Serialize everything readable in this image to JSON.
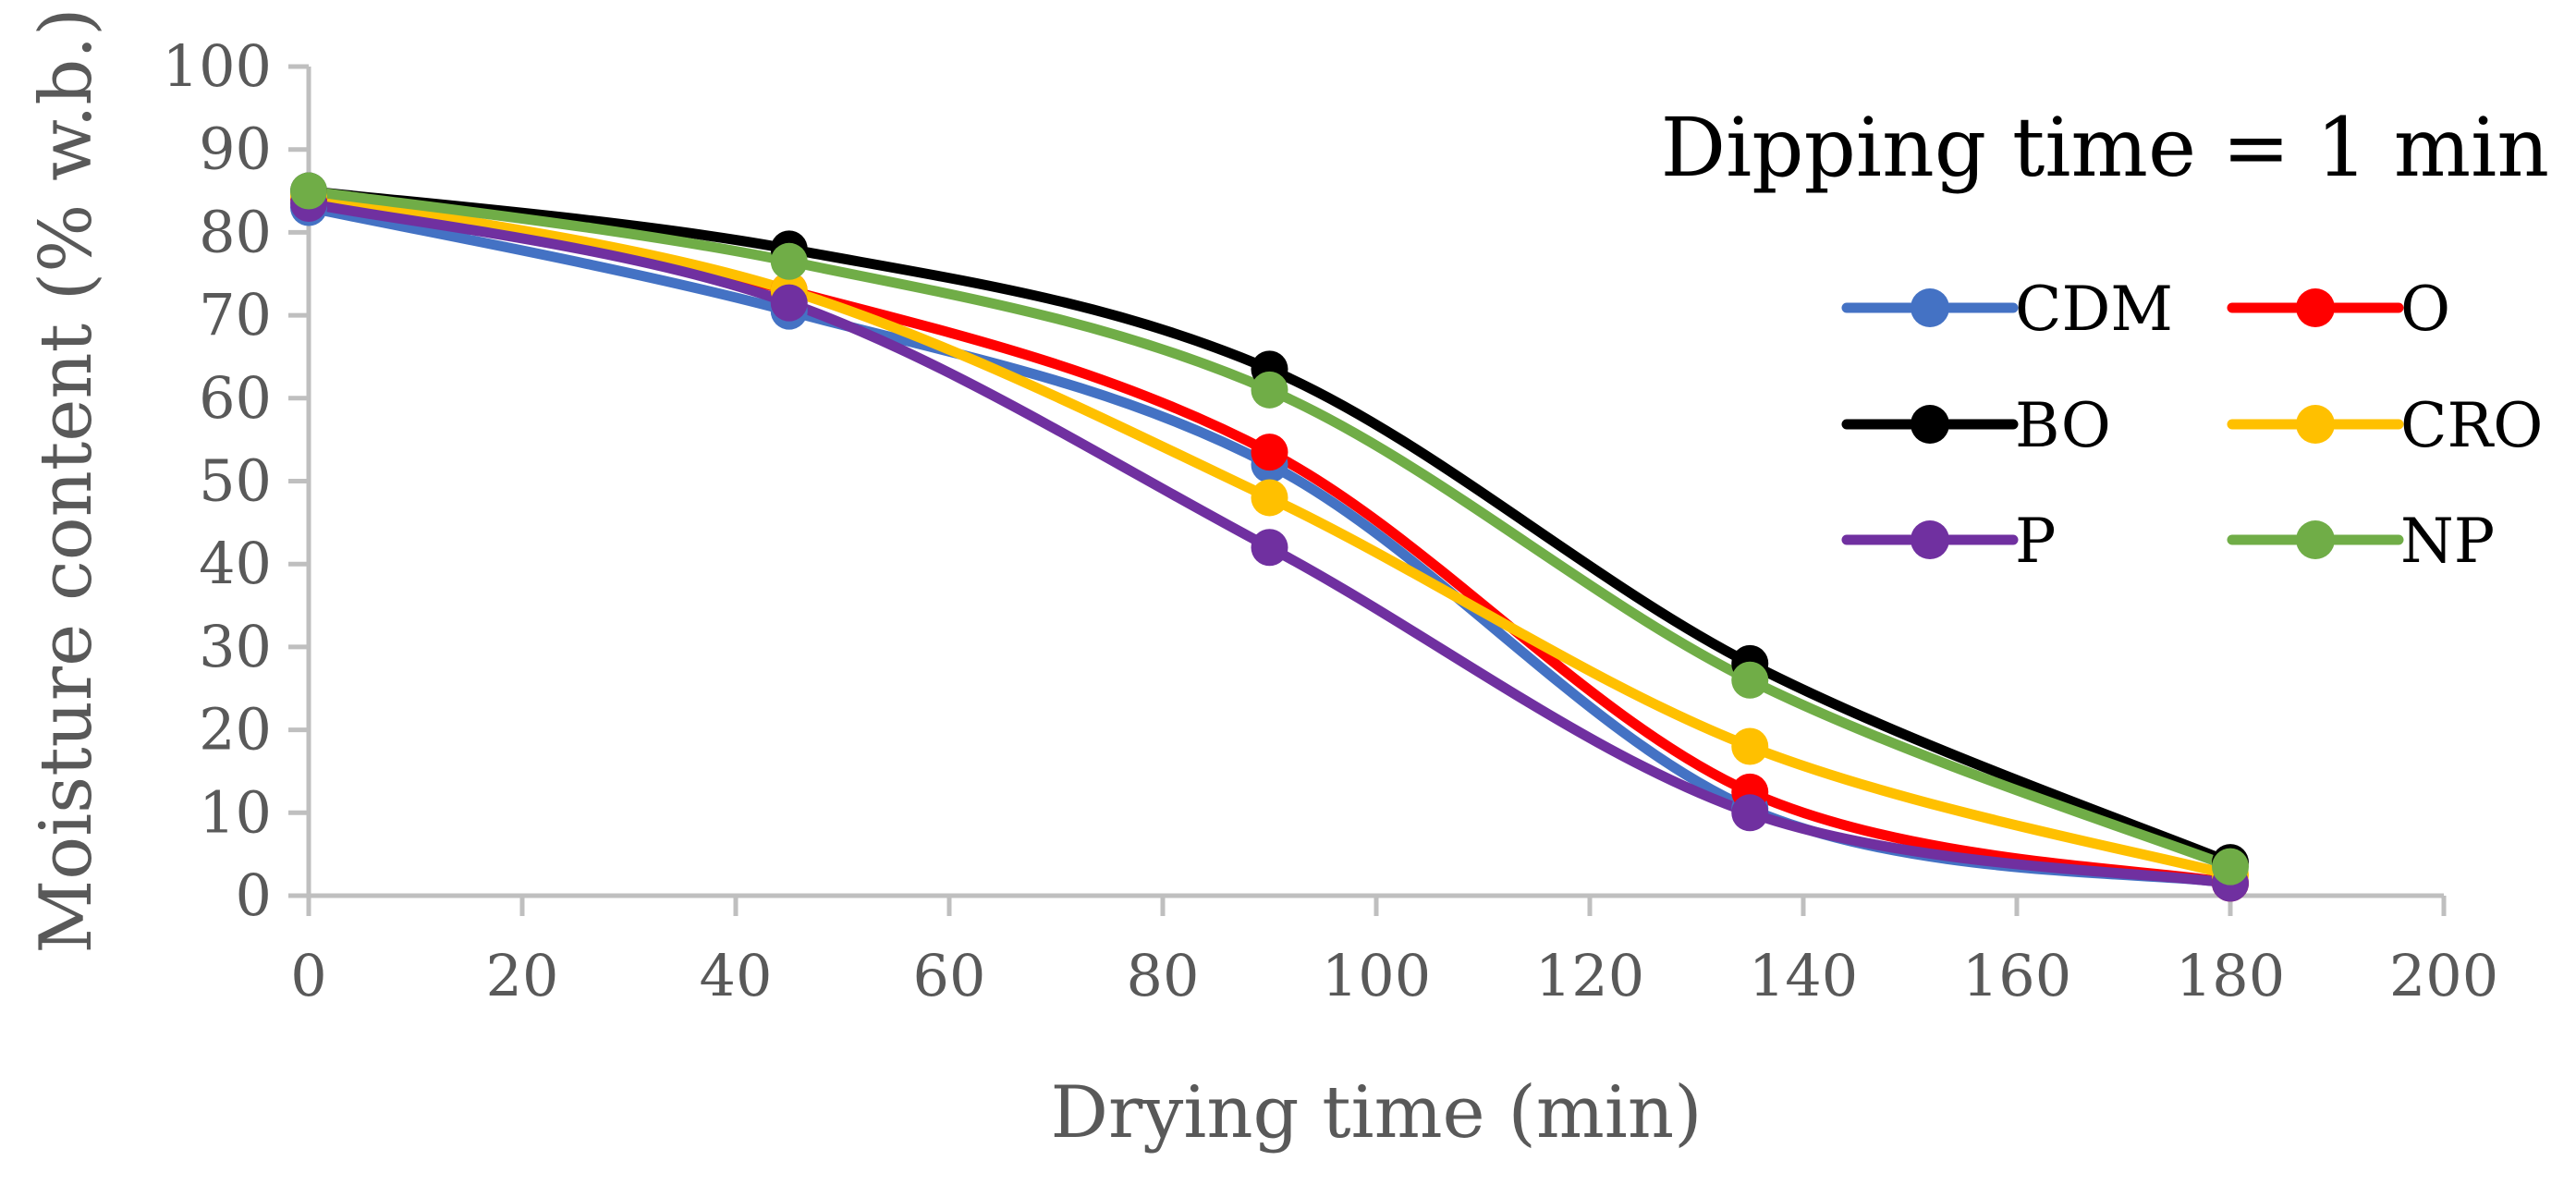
{
  "chart_data": {
    "type": "line",
    "title": "",
    "annotation": "Dipping time = 1 min",
    "xlabel": "Drying time (min)",
    "ylabel": "Moisture content (% w.b.)",
    "xlim": [
      0,
      200
    ],
    "ylim": [
      0,
      100
    ],
    "xticks": [
      0,
      20,
      40,
      60,
      80,
      100,
      120,
      140,
      160,
      180,
      200
    ],
    "yticks": [
      0,
      10,
      20,
      30,
      40,
      50,
      60,
      70,
      80,
      90,
      100
    ],
    "grid": false,
    "smooth": true,
    "legend_position": "right",
    "x": [
      0,
      45,
      90,
      135,
      180
    ],
    "series": [
      {
        "name": "CDM",
        "color": "#4472C4",
        "values": [
          83,
          70.5,
          52,
          10.5,
          1.5
        ]
      },
      {
        "name": "O",
        "color": "#FF0000",
        "values": [
          84,
          73,
          53.5,
          12.5,
          1.5
        ]
      },
      {
        "name": "BO",
        "color": "#000000",
        "values": [
          85,
          78,
          63.5,
          28,
          4
        ]
      },
      {
        "name": "CRO",
        "color": "#FFC000",
        "values": [
          84.5,
          73,
          48,
          18,
          2.5
        ]
      },
      {
        "name": "P",
        "color": "#7030A0",
        "values": [
          83.5,
          71.5,
          42,
          10,
          1.5
        ]
      },
      {
        "name": "NP",
        "color": "#70AD47",
        "values": [
          85,
          76.5,
          61,
          26,
          3.5
        ]
      }
    ]
  }
}
